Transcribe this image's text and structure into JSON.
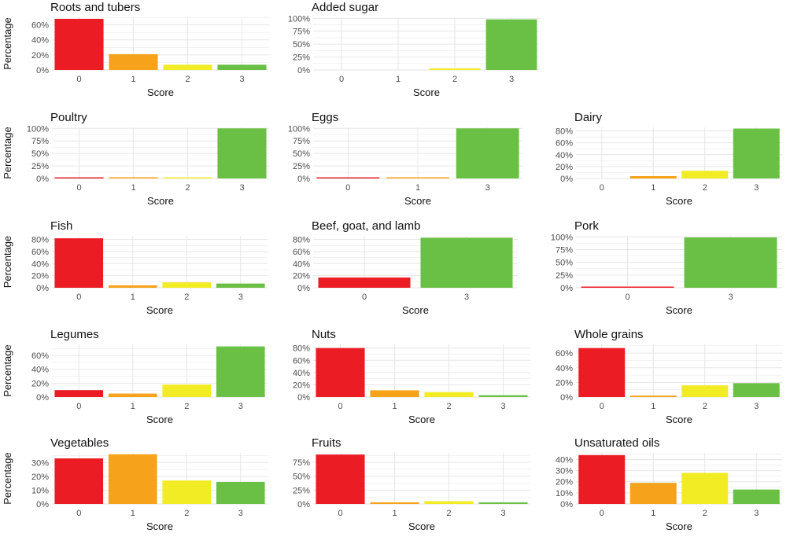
{
  "colors": {
    "score_0": "#ec1c24",
    "score_1": "#f7a21b",
    "score_2": "#f2ec25",
    "score_3": "#6abf45",
    "grid": "#e6e6e6"
  },
  "chart_data": [
    {
      "type": "bar",
      "title": "Roots and tubers",
      "categories": [
        "0",
        "1",
        "2",
        "3"
      ],
      "values": [
        68,
        21,
        7,
        7
      ],
      "ylim": [
        0,
        70
      ],
      "yticks": [
        "0%",
        "20%",
        "40%",
        "60%"
      ],
      "ytick_values": [
        0,
        20,
        40,
        60
      ],
      "xlabel": "Score",
      "ylabel": "Percentage"
    },
    {
      "type": "bar",
      "title": "Added sugar",
      "categories": [
        "0",
        "1",
        "2",
        "3"
      ],
      "values": [
        0,
        0,
        3,
        98
      ],
      "ylim": [
        0,
        102
      ],
      "yticks": [
        "0%",
        "25%",
        "50%",
        "75%",
        "100%"
      ],
      "ytick_values": [
        0,
        25,
        50,
        75,
        100
      ],
      "xlabel": "Score",
      "ylabel": ""
    },
    {
      "type": "bar",
      "title": "Poultry",
      "categories": [
        "0",
        "1",
        "2",
        "3"
      ],
      "values": [
        1,
        1,
        1,
        100
      ],
      "ylim": [
        0,
        102
      ],
      "yticks": [
        "0%",
        "25%",
        "50%",
        "75%",
        "100%"
      ],
      "ytick_values": [
        0,
        25,
        50,
        75,
        100
      ],
      "xlabel": "Score",
      "ylabel": "Percentage"
    },
    {
      "type": "bar",
      "title": "Eggs",
      "categories": [
        "0",
        "1",
        "3"
      ],
      "values": [
        1,
        1,
        100
      ],
      "ylim": [
        0,
        102
      ],
      "yticks": [
        "0%",
        "25%",
        "50%",
        "75%",
        "100%"
      ],
      "ytick_values": [
        0,
        25,
        50,
        75,
        100
      ],
      "xlabel": "Score",
      "ylabel": ""
    },
    {
      "type": "bar",
      "title": "Dairy",
      "categories": [
        "0",
        "1",
        "2",
        "3"
      ],
      "values": [
        0,
        4,
        13,
        84
      ],
      "ylim": [
        0,
        86
      ],
      "yticks": [
        "0%",
        "20%",
        "40%",
        "60%",
        "80%"
      ],
      "ytick_values": [
        0,
        20,
        40,
        60,
        80
      ],
      "xlabel": "Score",
      "ylabel": ""
    },
    {
      "type": "bar",
      "title": "Fish",
      "categories": [
        "0",
        "1",
        "2",
        "3"
      ],
      "values": [
        82,
        4,
        9,
        7
      ],
      "ylim": [
        0,
        86
      ],
      "yticks": [
        "0%",
        "20%",
        "40%",
        "60%",
        "80%"
      ],
      "ytick_values": [
        0,
        20,
        40,
        60,
        80
      ],
      "xlabel": "Score",
      "ylabel": "Percentage"
    },
    {
      "type": "bar",
      "title": "Beef, goat, and lamb",
      "categories": [
        "0",
        "3"
      ],
      "values": [
        17,
        83
      ],
      "ylim": [
        0,
        86
      ],
      "yticks": [
        "0%",
        "20%",
        "40%",
        "60%",
        "80%"
      ],
      "ytick_values": [
        0,
        20,
        40,
        60,
        80
      ],
      "xlabel": "Score",
      "ylabel": ""
    },
    {
      "type": "bar",
      "title": "Pork",
      "categories": [
        "0",
        "3"
      ],
      "values": [
        1,
        99
      ],
      "ylim": [
        0,
        102
      ],
      "yticks": [
        "0%",
        "25%",
        "50%",
        "75%",
        "100%"
      ],
      "ytick_values": [
        0,
        25,
        50,
        75,
        100
      ],
      "xlabel": "Score",
      "ylabel": ""
    },
    {
      "type": "bar",
      "title": "Legumes",
      "categories": [
        "0",
        "1",
        "2",
        "3"
      ],
      "values": [
        10,
        5,
        18,
        73
      ],
      "ylim": [
        0,
        76
      ],
      "yticks": [
        "0%",
        "20%",
        "40%",
        "60%"
      ],
      "ytick_values": [
        0,
        20,
        40,
        60
      ],
      "xlabel": "Score",
      "ylabel": "Percentage"
    },
    {
      "type": "bar",
      "title": "Nuts",
      "categories": [
        "0",
        "1",
        "2",
        "3"
      ],
      "values": [
        80,
        11,
        8,
        3
      ],
      "ylim": [
        0,
        86
      ],
      "yticks": [
        "0%",
        "20%",
        "40%",
        "60%",
        "80%"
      ],
      "ytick_values": [
        0,
        20,
        40,
        60,
        80
      ],
      "xlabel": "Score",
      "ylabel": ""
    },
    {
      "type": "bar",
      "title": "Whole grains",
      "categories": [
        "0",
        "1",
        "2",
        "3"
      ],
      "values": [
        67,
        2,
        16,
        19
      ],
      "ylim": [
        0,
        72
      ],
      "yticks": [
        "0%",
        "20%",
        "40%",
        "60%"
      ],
      "ytick_values": [
        0,
        20,
        40,
        60
      ],
      "xlabel": "Score",
      "ylabel": ""
    },
    {
      "type": "bar",
      "title": "Vegetables",
      "categories": [
        "0",
        "1",
        "2",
        "3"
      ],
      "values": [
        33,
        36,
        17,
        16
      ],
      "ylim": [
        0,
        37
      ],
      "yticks": [
        "0%",
        "10%",
        "20%",
        "30%"
      ],
      "ytick_values": [
        0,
        10,
        20,
        30
      ],
      "xlabel": "Score",
      "ylabel": "Percentage"
    },
    {
      "type": "bar",
      "title": "Fruits",
      "categories": [
        "0",
        "1",
        "2",
        "3"
      ],
      "values": [
        89,
        3,
        5,
        3
      ],
      "ylim": [
        0,
        92
      ],
      "yticks": [
        "0%",
        "25%",
        "50%",
        "75%"
      ],
      "ytick_values": [
        0,
        25,
        50,
        75
      ],
      "xlabel": "Score",
      "ylabel": ""
    },
    {
      "type": "bar",
      "title": "Unsaturated oils",
      "categories": [
        "0",
        "1",
        "2",
        "3"
      ],
      "values": [
        44,
        19,
        28,
        13
      ],
      "ylim": [
        0,
        46
      ],
      "yticks": [
        "0%",
        "10%",
        "20%",
        "30%",
        "40%"
      ],
      "ytick_values": [
        0,
        10,
        20,
        30,
        40
      ],
      "xlabel": "Score",
      "ylabel": ""
    }
  ]
}
